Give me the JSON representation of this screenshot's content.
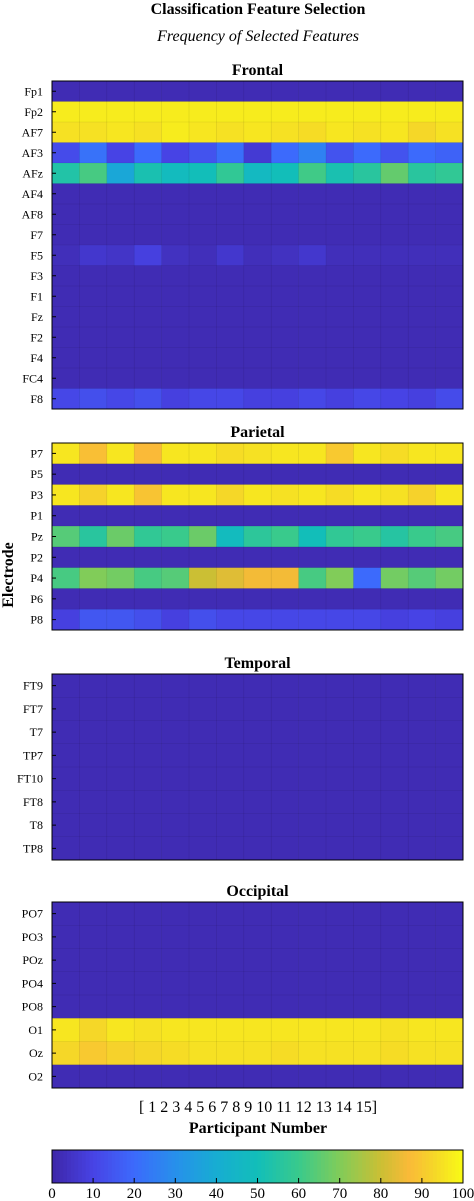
{
  "chart_data": {
    "type": "heatmap",
    "title": "Classification Feature Selection",
    "subtitle": "Frequency of Selected Features",
    "ylabel": "Electrode",
    "xlabel": "Participant Number",
    "x_tick_label": "[ 1 2 3 4 5 6 7 8 9 10 11 12 13 14 15]",
    "x": [
      1,
      2,
      3,
      4,
      5,
      6,
      7,
      8,
      9,
      10,
      11,
      12,
      13,
      14,
      15
    ],
    "colorbar": {
      "ticks": [
        0,
        10,
        20,
        30,
        40,
        50,
        60,
        70,
        80,
        90,
        100
      ],
      "range": [
        0,
        100
      ],
      "colormap": "parula"
    },
    "panels": [
      {
        "name": "Frontal",
        "rows": [
          "Fp1",
          "Fp2",
          "AF7",
          "AF3",
          "AFz",
          "AF4",
          "AF8",
          "F7",
          "F5",
          "F3",
          "F1",
          "Fz",
          "F2",
          "F4",
          "FC4",
          "F8"
        ],
        "values": [
          [
            2,
            2,
            2,
            2,
            2,
            2,
            2,
            2,
            2,
            2,
            2,
            2,
            2,
            2,
            2
          ],
          [
            97,
            97,
            97,
            97,
            97,
            97,
            97,
            97,
            97,
            97,
            97,
            97,
            97,
            97,
            97
          ],
          [
            95,
            95,
            96,
            95,
            97,
            96,
            95,
            96,
            95,
            94,
            96,
            95,
            96,
            93,
            95
          ],
          [
            12,
            22,
            10,
            20,
            10,
            14,
            21,
            7,
            20,
            26,
            14,
            20,
            14,
            20,
            18
          ],
          [
            54,
            62,
            38,
            52,
            48,
            50,
            58,
            47,
            50,
            61,
            52,
            56,
            66,
            56,
            58
          ],
          [
            2,
            2,
            2,
            2,
            2,
            2,
            2,
            2,
            2,
            2,
            2,
            2,
            2,
            2,
            2
          ],
          [
            2,
            2,
            2,
            2,
            2,
            2,
            2,
            2,
            2,
            2,
            2,
            2,
            2,
            2,
            2
          ],
          [
            2,
            2,
            2,
            2,
            2,
            2,
            2,
            2,
            2,
            2,
            2,
            2,
            2,
            2,
            2
          ],
          [
            3,
            6,
            5,
            9,
            4,
            3,
            6,
            3,
            4,
            6,
            3,
            3,
            3,
            3,
            3
          ],
          [
            2,
            2,
            2,
            2,
            2,
            2,
            2,
            2,
            2,
            2,
            2,
            2,
            2,
            2,
            2
          ],
          [
            2,
            2,
            2,
            2,
            2,
            2,
            2,
            2,
            2,
            2,
            2,
            2,
            2,
            2,
            2
          ],
          [
            2,
            2,
            2,
            2,
            2,
            2,
            2,
            2,
            2,
            2,
            2,
            2,
            2,
            2,
            2
          ],
          [
            2,
            2,
            2,
            2,
            2,
            2,
            2,
            2,
            2,
            2,
            2,
            2,
            2,
            2,
            2
          ],
          [
            2,
            2,
            2,
            2,
            2,
            2,
            2,
            2,
            2,
            2,
            2,
            2,
            2,
            2,
            2
          ],
          [
            2,
            2,
            2,
            2,
            2,
            2,
            2,
            2,
            2,
            2,
            2,
            2,
            2,
            2,
            2
          ],
          [
            11,
            13,
            11,
            13,
            9,
            11,
            11,
            9,
            9,
            11,
            9,
            11,
            10,
            9,
            12
          ]
        ]
      },
      {
        "name": "Parietal",
        "rows": [
          "P7",
          "P5",
          "P3",
          "P1",
          "Pz",
          "P2",
          "P4",
          "P6",
          "P8"
        ],
        "values": [
          [
            96,
            88,
            96,
            87,
            96,
            96,
            94,
            95,
            96,
            96,
            90,
            96,
            94,
            96,
            96
          ],
          [
            2,
            2,
            2,
            2,
            2,
            2,
            2,
            2,
            2,
            2,
            2,
            2,
            2,
            2,
            2
          ],
          [
            96,
            92,
            96,
            89,
            96,
            96,
            93,
            96,
            95,
            96,
            94,
            96,
            95,
            92,
            96
          ],
          [
            2,
            2,
            2,
            2,
            2,
            2,
            2,
            2,
            2,
            2,
            2,
            2,
            2,
            2,
            2
          ],
          [
            64,
            56,
            67,
            58,
            60,
            67,
            48,
            57,
            60,
            50,
            58,
            60,
            55,
            60,
            62
          ],
          [
            2,
            2,
            2,
            2,
            2,
            2,
            2,
            2,
            2,
            2,
            2,
            2,
            2,
            2,
            2
          ],
          [
            62,
            70,
            68,
            62,
            64,
            80,
            83,
            86,
            86,
            62,
            70,
            20,
            68,
            64,
            68
          ],
          [
            2,
            2,
            2,
            2,
            2,
            2,
            2,
            2,
            2,
            2,
            2,
            2,
            2,
            2,
            2
          ],
          [
            9,
            15,
            15,
            13,
            9,
            13,
            11,
            11,
            11,
            11,
            11,
            11,
            9,
            10,
            9
          ]
        ]
      },
      {
        "name": "Temporal",
        "rows": [
          "FT9",
          "FT7",
          "T7",
          "TP7",
          "FT10",
          "FT8",
          "T8",
          "TP8"
        ],
        "values": [
          [
            2,
            2,
            2,
            2,
            2,
            2,
            2,
            2,
            2,
            2,
            2,
            2,
            2,
            2,
            2
          ],
          [
            2,
            2,
            2,
            2,
            2,
            2,
            2,
            2,
            2,
            2,
            2,
            2,
            2,
            2,
            2
          ],
          [
            2,
            2,
            2,
            2,
            2,
            2,
            2,
            2,
            2,
            2,
            2,
            2,
            2,
            2,
            2
          ],
          [
            2,
            2,
            2,
            2,
            2,
            2,
            2,
            2,
            2,
            2,
            2,
            2,
            2,
            2,
            2
          ],
          [
            2,
            2,
            2,
            2,
            2,
            2,
            2,
            2,
            2,
            2,
            2,
            2,
            2,
            2,
            2
          ],
          [
            2,
            2,
            2,
            2,
            2,
            2,
            2,
            2,
            2,
            2,
            2,
            2,
            2,
            2,
            2
          ],
          [
            2,
            2,
            2,
            2,
            2,
            2,
            2,
            2,
            2,
            2,
            2,
            2,
            2,
            2,
            2
          ],
          [
            2,
            2,
            2,
            2,
            2,
            2,
            2,
            2,
            2,
            2,
            2,
            2,
            2,
            2,
            2
          ]
        ]
      },
      {
        "name": "Occipital",
        "rows": [
          "PO7",
          "PO3",
          "POz",
          "PO4",
          "PO8",
          "O1",
          "Oz",
          "O2"
        ],
        "values": [
          [
            2,
            2,
            2,
            2,
            2,
            2,
            2,
            2,
            2,
            2,
            2,
            2,
            2,
            2,
            2
          ],
          [
            2,
            2,
            2,
            2,
            2,
            2,
            2,
            2,
            2,
            2,
            2,
            2,
            2,
            2,
            2
          ],
          [
            2,
            2,
            2,
            2,
            2,
            2,
            2,
            2,
            2,
            2,
            2,
            2,
            2,
            2,
            2
          ],
          [
            2,
            2,
            2,
            2,
            2,
            2,
            2,
            2,
            2,
            2,
            2,
            2,
            2,
            2,
            2
          ],
          [
            2,
            2,
            2,
            2,
            2,
            2,
            2,
            2,
            2,
            2,
            2,
            2,
            2,
            2,
            2
          ],
          [
            96,
            93,
            96,
            95,
            96,
            96,
            96,
            96,
            96,
            96,
            96,
            96,
            95,
            96,
            96
          ],
          [
            93,
            90,
            92,
            93,
            94,
            95,
            95,
            95,
            94,
            95,
            95,
            95,
            94,
            95,
            95
          ],
          [
            2,
            2,
            2,
            2,
            2,
            2,
            2,
            2,
            2,
            2,
            2,
            2,
            2,
            2,
            2
          ]
        ]
      }
    ]
  }
}
